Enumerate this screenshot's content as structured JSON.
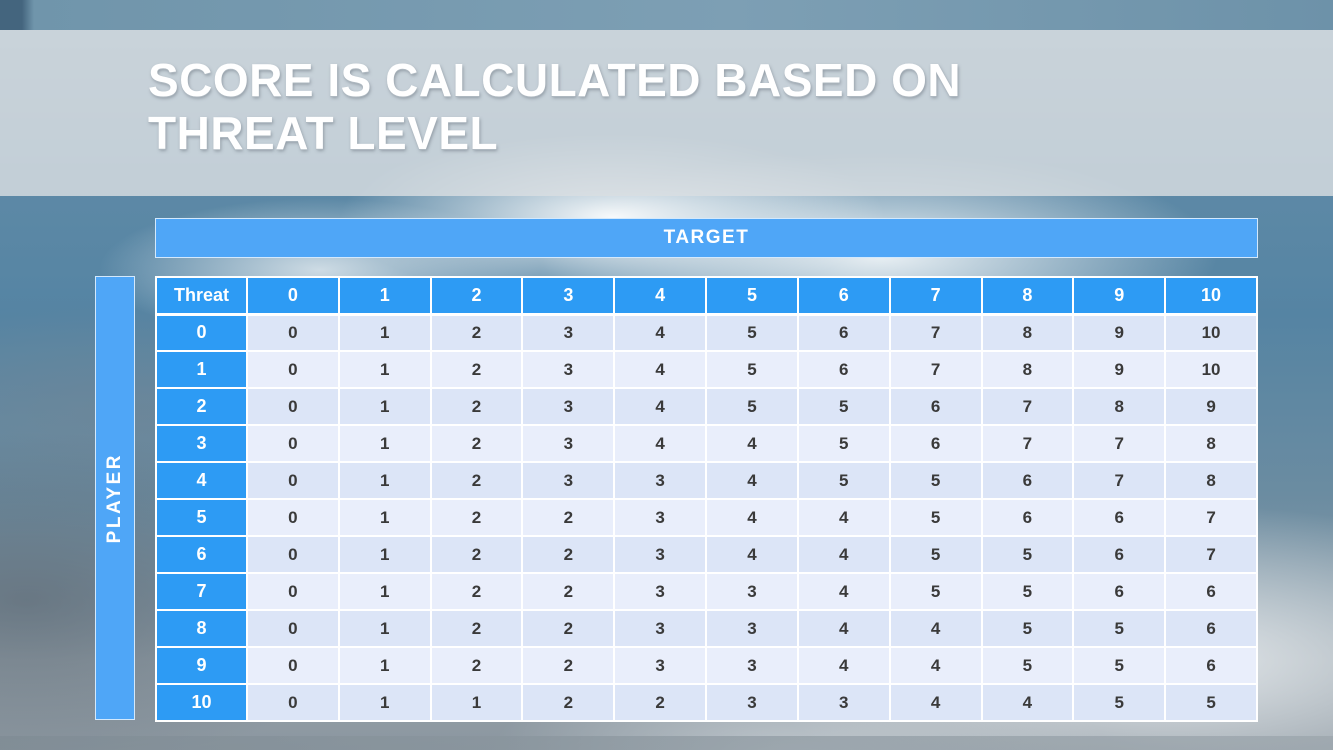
{
  "title": {
    "line1": "SCORE IS CALCULATED BASED ON",
    "line2": "THREAT LEVEL"
  },
  "chart_data": {
    "type": "table",
    "title": "SCORE IS CALCULATED BASED ON THREAT LEVEL",
    "column_group_label": "TARGET",
    "row_group_label": "PLAYER",
    "corner_header": "Threat",
    "columns": [
      "0",
      "1",
      "2",
      "3",
      "4",
      "5",
      "6",
      "7",
      "8",
      "9",
      "10"
    ],
    "rows": [
      {
        "label": "0",
        "values": [
          0,
          1,
          2,
          3,
          4,
          5,
          6,
          7,
          8,
          9,
          10
        ]
      },
      {
        "label": "1",
        "values": [
          0,
          1,
          2,
          3,
          4,
          5,
          6,
          7,
          8,
          9,
          10
        ]
      },
      {
        "label": "2",
        "values": [
          0,
          1,
          2,
          3,
          4,
          5,
          5,
          6,
          7,
          8,
          9
        ]
      },
      {
        "label": "3",
        "values": [
          0,
          1,
          2,
          3,
          4,
          4,
          5,
          6,
          7,
          7,
          8
        ]
      },
      {
        "label": "4",
        "values": [
          0,
          1,
          2,
          3,
          3,
          4,
          5,
          5,
          6,
          7,
          8
        ]
      },
      {
        "label": "5",
        "values": [
          0,
          1,
          2,
          2,
          3,
          4,
          4,
          5,
          6,
          6,
          7
        ]
      },
      {
        "label": "6",
        "values": [
          0,
          1,
          2,
          2,
          3,
          4,
          4,
          5,
          5,
          6,
          7
        ]
      },
      {
        "label": "7",
        "values": [
          0,
          1,
          2,
          2,
          3,
          3,
          4,
          5,
          5,
          6,
          6
        ]
      },
      {
        "label": "8",
        "values": [
          0,
          1,
          2,
          2,
          3,
          3,
          4,
          4,
          5,
          5,
          6
        ]
      },
      {
        "label": "9",
        "values": [
          0,
          1,
          2,
          2,
          3,
          3,
          4,
          4,
          5,
          5,
          6
        ]
      },
      {
        "label": "10",
        "values": [
          0,
          1,
          1,
          2,
          2,
          3,
          3,
          4,
          4,
          5,
          5
        ]
      }
    ]
  },
  "colors": {
    "header_blue": "#2D9BF4",
    "band_blue": "#4FA6F7",
    "row_band_a": "#DCE5F7",
    "row_band_b": "#E9EEFB",
    "cell_text": "#3A3A3A"
  }
}
